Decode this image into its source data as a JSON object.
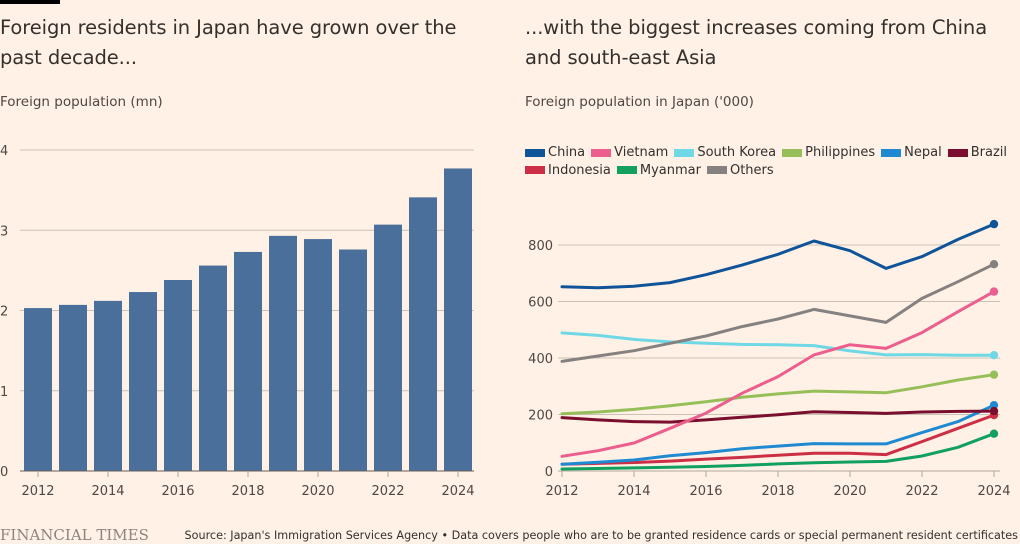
{
  "brand": "FINANCIAL TIMES",
  "source": "Source: Japan's Immigration Services Agency • Data covers people who are to be granted residence cards or special permanent resident certificates",
  "chart_data": [
    {
      "type": "bar",
      "title": "Foreign residents in Japan have grown over the past decade...",
      "subtitle": "Foreign population (mn)",
      "xlabel": "",
      "ylabel": "Foreign population (mn)",
      "categories": [
        "2012",
        "2013",
        "2014",
        "2015",
        "2016",
        "2017",
        "2018",
        "2019",
        "2020",
        "2021",
        "2022",
        "2023",
        "2024"
      ],
      "values": [
        2.03,
        2.07,
        2.12,
        2.23,
        2.38,
        2.56,
        2.73,
        2.93,
        2.89,
        2.76,
        3.07,
        3.41,
        3.77
      ],
      "ylim": [
        0,
        4
      ],
      "yticks": [
        "0",
        "1",
        "2",
        "3",
        "4"
      ],
      "xtick_labels": [
        "2012",
        "2014",
        "2016",
        "2018",
        "2020",
        "2022",
        "2024"
      ],
      "grid": true,
      "bar_color": "#4a6f9b"
    },
    {
      "type": "line",
      "title": "...with the biggest increases coming from China and south-east Asia",
      "subtitle": "Foreign population in Japan ('000)",
      "xlabel": "",
      "ylabel": "Foreign population in Japan ('000)",
      "x": [
        2012,
        2013,
        2014,
        2015,
        2016,
        2017,
        2018,
        2019,
        2020,
        2021,
        2022,
        2023,
        2024
      ],
      "ylim": [
        0,
        900
      ],
      "yticks": [
        "0",
        "200",
        "400",
        "600",
        "800"
      ],
      "xtick_labels": [
        "2012",
        "2014",
        "2016",
        "2018",
        "2020",
        "2022",
        "2024"
      ],
      "grid": true,
      "legend_position": "top-left",
      "series": [
        {
          "name": "China",
          "color": "#0f5499",
          "values": [
            652,
            649,
            654,
            667,
            695,
            729,
            767,
            814,
            780,
            717,
            759,
            820,
            874
          ]
        },
        {
          "name": "Vietnam",
          "color": "#eb5e8d",
          "values": [
            52,
            72,
            99,
            151,
            205,
            275,
            334,
            411,
            447,
            434,
            490,
            564,
            635
          ]
        },
        {
          "name": "South Korea",
          "color": "#6fd8e5",
          "values": [
            489,
            480,
            466,
            457,
            452,
            448,
            447,
            444,
            425,
            411,
            412,
            410,
            410
          ]
        },
        {
          "name": "Philippines",
          "color": "#96bf5a",
          "values": [
            203,
            209,
            218,
            231,
            245,
            261,
            273,
            283,
            280,
            277,
            298,
            322,
            341
          ]
        },
        {
          "name": "Nepal",
          "color": "#1f8ad1",
          "values": [
            24,
            31,
            39,
            54,
            65,
            79,
            88,
            97,
            96,
            96,
            136,
            175,
            233
          ]
        },
        {
          "name": "Brazil",
          "color": "#7a0e2e",
          "values": [
            189,
            181,
            175,
            173,
            181,
            190,
            199,
            210,
            207,
            204,
            209,
            211,
            212
          ]
        },
        {
          "name": "Indonesia",
          "color": "#cc2f45",
          "values": [
            24,
            27,
            30,
            35,
            42,
            48,
            56,
            63,
            63,
            58,
            104,
            151,
            198
          ]
        },
        {
          "name": "Myanmar",
          "color": "#12a05f",
          "values": [
            7,
            9,
            11,
            13,
            16,
            20,
            25,
            29,
            32,
            34,
            53,
            84,
            132
          ]
        },
        {
          "name": "Others",
          "color": "#858180",
          "values": [
            388,
            407,
            426,
            452,
            478,
            511,
            538,
            572,
            549,
            526,
            611,
            670,
            732
          ]
        }
      ]
    }
  ]
}
